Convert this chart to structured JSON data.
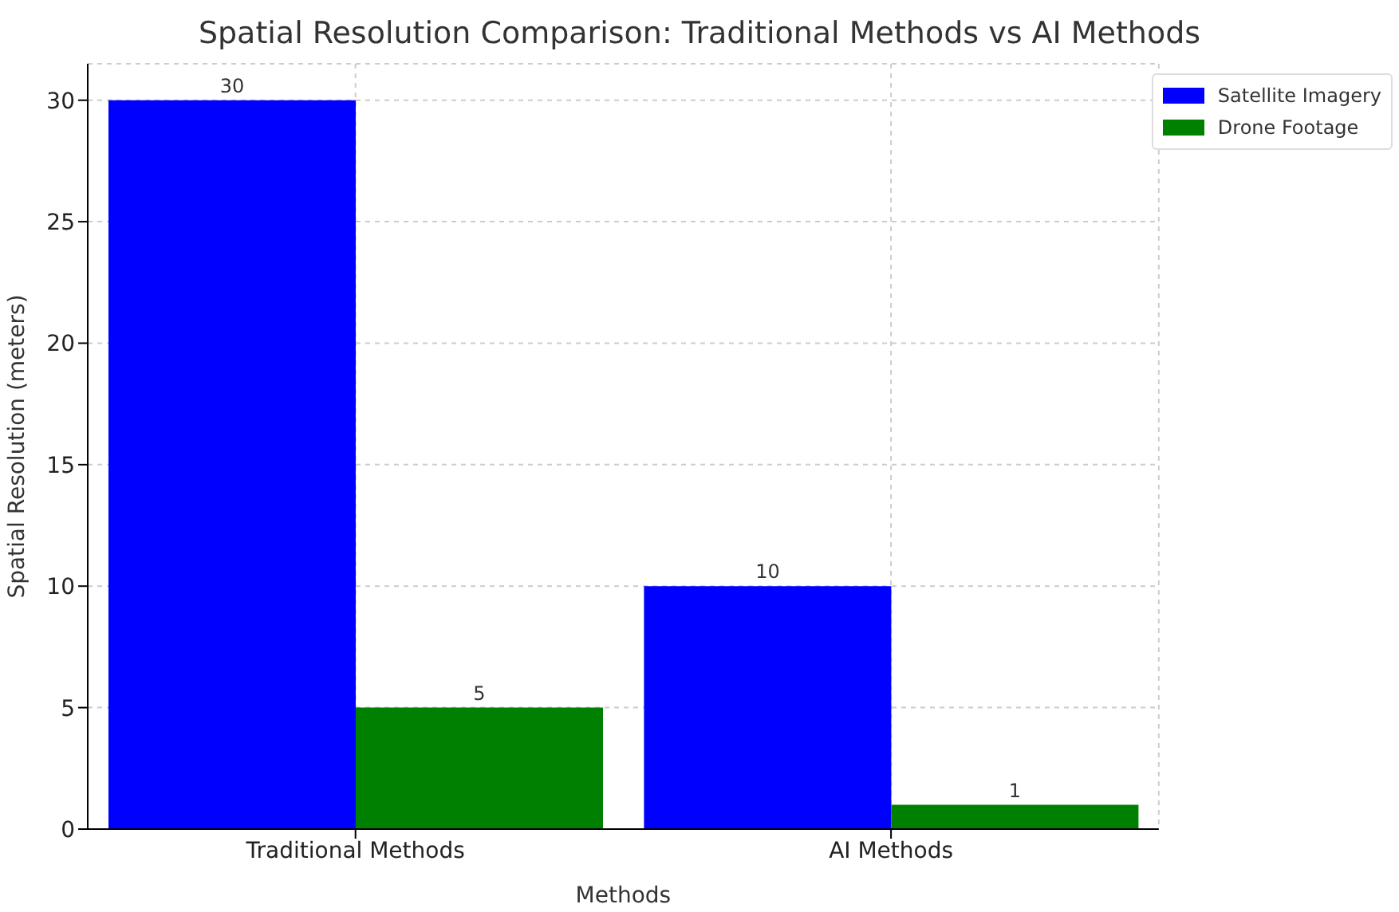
{
  "chart_data": {
    "type": "bar",
    "title": "Spatial Resolution Comparison: Traditional Methods vs AI Methods",
    "xlabel": "Methods",
    "ylabel": "Spatial Resolution (meters)",
    "categories": [
      "Traditional Methods",
      "AI Methods"
    ],
    "series": [
      {
        "name": "Satellite Imagery",
        "color": "#0000ff",
        "values": [
          30,
          10
        ]
      },
      {
        "name": "Drone Footage",
        "color": "#008000",
        "values": [
          5,
          1
        ]
      }
    ],
    "ylim": [
      0,
      31.5
    ],
    "yticks": [
      0,
      5,
      10,
      15,
      20,
      25,
      30
    ],
    "grid": true,
    "legend": "top right",
    "data_labels": true
  }
}
